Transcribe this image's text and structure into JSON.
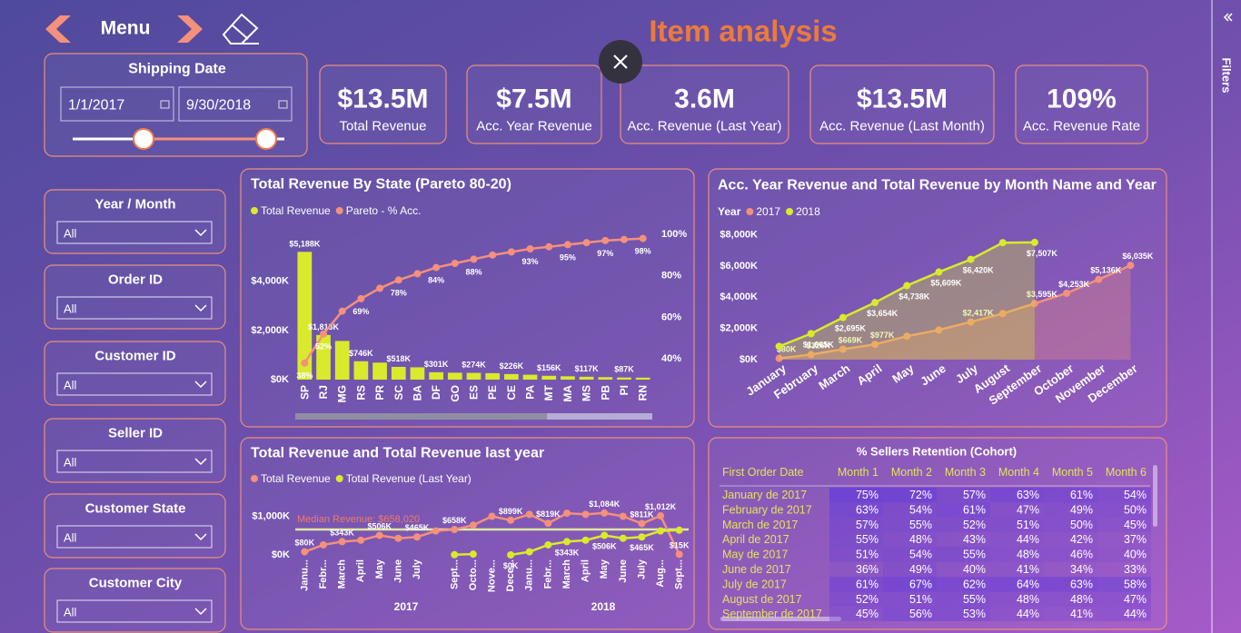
{
  "header": {
    "menu": "Menu",
    "title": "Item analysis"
  },
  "filters_pane": {
    "label": "Filters"
  },
  "shipping_date": {
    "title": "Shipping Date",
    "start": "1/1/2017",
    "end": "9/30/2018"
  },
  "kpis": [
    {
      "value": "$13.5M",
      "label": "Total Revenue"
    },
    {
      "value": "$7.5M",
      "label": "Acc. Year Revenue"
    },
    {
      "value": "3.6M",
      "label": "Acc. Revenue (Last Year)"
    },
    {
      "value": "$13.5M",
      "label": "Acc. Revenue (Last Month)"
    },
    {
      "value": "109%",
      "label": "Acc. Revenue Rate"
    }
  ],
  "slicers": [
    {
      "title": "Year / Month",
      "value": "All"
    },
    {
      "title": "Order ID",
      "value": "All"
    },
    {
      "title": "Customer ID",
      "value": "All"
    },
    {
      "title": "Seller ID",
      "value": "All"
    },
    {
      "title": "Customer State",
      "value": "All"
    },
    {
      "title": "Customer City",
      "value": "All"
    }
  ],
  "chart_data": [
    {
      "type": "combo",
      "title": "Total Revenue By State (Pareto 80-20)",
      "categories": [
        "SP",
        "RJ",
        "MG",
        "RS",
        "PR",
        "SC",
        "BA",
        "DF",
        "GO",
        "ES",
        "PE",
        "CE",
        "PA",
        "MT",
        "MA",
        "MS",
        "PB",
        "PI",
        "RN"
      ],
      "series": [
        {
          "name": "Total Revenue",
          "type": "bar",
          "color": "#d9ea2c",
          "values": [
            5188,
            1813,
            1570,
            746,
            690,
            518,
            500,
            301,
            280,
            274,
            262,
            226,
            200,
            156,
            135,
            117,
            100,
            87,
            80
          ],
          "value_labels": [
            "$5,188K",
            "$1,813K",
            null,
            "$746K",
            null,
            "$518K",
            null,
            "$301K",
            null,
            "$274K",
            null,
            "$226K",
            null,
            "$156K",
            null,
            "$117K",
            null,
            "$87K",
            null
          ]
        },
        {
          "name": "Pareto - % Acc.",
          "type": "line",
          "axis": "y2",
          "color": "#f4907c",
          "values": [
            38,
            52,
            63,
            69,
            74,
            78,
            81,
            84,
            86,
            88,
            90,
            91.5,
            93,
            94,
            95,
            96,
            97,
            97.5,
            98
          ],
          "value_labels": [
            "38%",
            "52%",
            null,
            "69%",
            null,
            "78%",
            null,
            "84%",
            null,
            "88%",
            null,
            null,
            "93%",
            null,
            "95%",
            null,
            "97%",
            null,
            "98%"
          ]
        }
      ],
      "ylim": [
        0,
        5900
      ],
      "yticks": [
        {
          "value": 0,
          "label": "$0K"
        },
        {
          "value": 2000,
          "label": "$2,000K"
        },
        {
          "value": 4000,
          "label": "$4,000K"
        }
      ],
      "y2lim": [
        30,
        100
      ],
      "y2ticks": [
        {
          "value": 40,
          "label": "40%"
        },
        {
          "value": 60,
          "label": "60%"
        },
        {
          "value": 80,
          "label": "80%"
        },
        {
          "value": 100,
          "label": "100%"
        }
      ],
      "grid": false
    },
    {
      "type": "area",
      "title": "Acc. Year Revenue and Total Revenue by Month Name and Year",
      "legend_title": "Year",
      "categories": [
        "January",
        "February",
        "March",
        "April",
        "May",
        "June",
        "July",
        "August",
        "September",
        "October",
        "November",
        "December"
      ],
      "series": [
        {
          "name": "2017",
          "color": "#f4907c",
          "values": [
            80,
            326,
            669,
            977,
            1500,
            1900,
            2417,
            2950,
            3595,
            4253,
            5136,
            6035
          ],
          "value_labels": [
            "$80K",
            "$326K",
            "$669K",
            "$977K",
            null,
            null,
            "$2,417K",
            null,
            "$3,595K",
            "$4,253K",
            "$5,136K",
            "$6,035K"
          ]
        },
        {
          "name": "2018",
          "color": "#d9ea2c",
          "values": [
            850,
            1665,
            2695,
            3654,
            4738,
            5609,
            6420,
            7490,
            7507,
            null,
            null,
            null
          ],
          "value_labels": [
            null,
            "$1,665K",
            "$2,695K",
            "$3,654K",
            "$4,738K",
            "$5,609K",
            "$6,420K",
            null,
            "$7,507K",
            null,
            null,
            null
          ]
        }
      ],
      "ylim": [
        0,
        8200
      ],
      "yticks": [
        {
          "value": 0,
          "label": "$0K"
        },
        {
          "value": 2000,
          "label": "$2,000K"
        },
        {
          "value": 4000,
          "label": "$4,000K"
        },
        {
          "value": 6000,
          "label": "$6,000K"
        },
        {
          "value": 8000,
          "label": "$8,000K"
        }
      ],
      "grid": false
    },
    {
      "type": "line",
      "title": "Total Revenue and Total Revenue last year",
      "categories": [
        "Janu...",
        "Febr...",
        "March",
        "April",
        "May",
        "June",
        "July",
        null,
        "Sept...",
        "Octo...",
        "Nove...",
        "Dece...",
        "Janu...",
        "Febr...",
        "March",
        "April",
        "May",
        "June",
        "July",
        "Aug...",
        "Sept..."
      ],
      "x_groups": [
        "2017",
        "2018"
      ],
      "series": [
        {
          "name": "Total Revenue",
          "color": "#f4907c",
          "values": [
            80,
            260,
            343,
            380,
            506,
            430,
            465,
            620,
            658,
            770,
            1000,
            899,
            1050,
            819,
            1080,
            1050,
            1084,
            1000,
            811,
            1012,
            15
          ],
          "value_labels": [
            "$80K",
            null,
            "$343K",
            null,
            "$506K",
            null,
            "$465K",
            null,
            "$658K",
            null,
            null,
            "$899K",
            null,
            "$819K",
            null,
            null,
            "$1,084K",
            null,
            "$811K",
            "$1,012K",
            "$15K"
          ]
        },
        {
          "name": "Total Revenue (Last Year)",
          "color": "#d9ea2c",
          "values": [
            null,
            null,
            null,
            null,
            null,
            null,
            null,
            null,
            5,
            20,
            null,
            0,
            80,
            260,
            343,
            380,
            506,
            430,
            465,
            620,
            640
          ],
          "value_labels": [
            null,
            null,
            null,
            null,
            null,
            null,
            null,
            null,
            null,
            null,
            null,
            "$0K",
            null,
            null,
            "$343K",
            null,
            "$506K",
            null,
            "$465K",
            null,
            null
          ]
        }
      ],
      "reference_line": {
        "label": "Median Revenue: $658,020",
        "value": 658.02,
        "color": "#dfe7a0"
      },
      "ylim": [
        0,
        1200
      ],
      "yticks": [
        {
          "value": 0,
          "label": "$0K"
        },
        {
          "value": 1000,
          "label": "$1,000K"
        }
      ],
      "grid": false
    }
  ],
  "table": {
    "title": "% Sellers Retention (Cohort)",
    "columns": [
      "First Order Date",
      "Month 1",
      "Month 2",
      "Month 3",
      "Month 4",
      "Month 5",
      "Month 6"
    ],
    "rows": [
      [
        "January de 2017",
        "75%",
        "72%",
        "57%",
        "63%",
        "61%",
        "54%"
      ],
      [
        "February de 2017",
        "63%",
        "54%",
        "61%",
        "47%",
        "49%",
        "50%"
      ],
      [
        "March de 2017",
        "57%",
        "55%",
        "52%",
        "51%",
        "50%",
        "45%"
      ],
      [
        "April de 2017",
        "55%",
        "48%",
        "43%",
        "44%",
        "42%",
        "37%"
      ],
      [
        "May de 2017",
        "51%",
        "54%",
        "55%",
        "48%",
        "46%",
        "40%"
      ],
      [
        "June de 2017",
        "36%",
        "49%",
        "40%",
        "41%",
        "34%",
        "33%"
      ],
      [
        "July de 2017",
        "61%",
        "67%",
        "62%",
        "64%",
        "63%",
        "58%"
      ],
      [
        "August de 2017",
        "52%",
        "51%",
        "55%",
        "48%",
        "48%",
        "47%"
      ],
      [
        "September de 2017",
        "45%",
        "56%",
        "53%",
        "44%",
        "41%",
        "44%"
      ]
    ]
  }
}
